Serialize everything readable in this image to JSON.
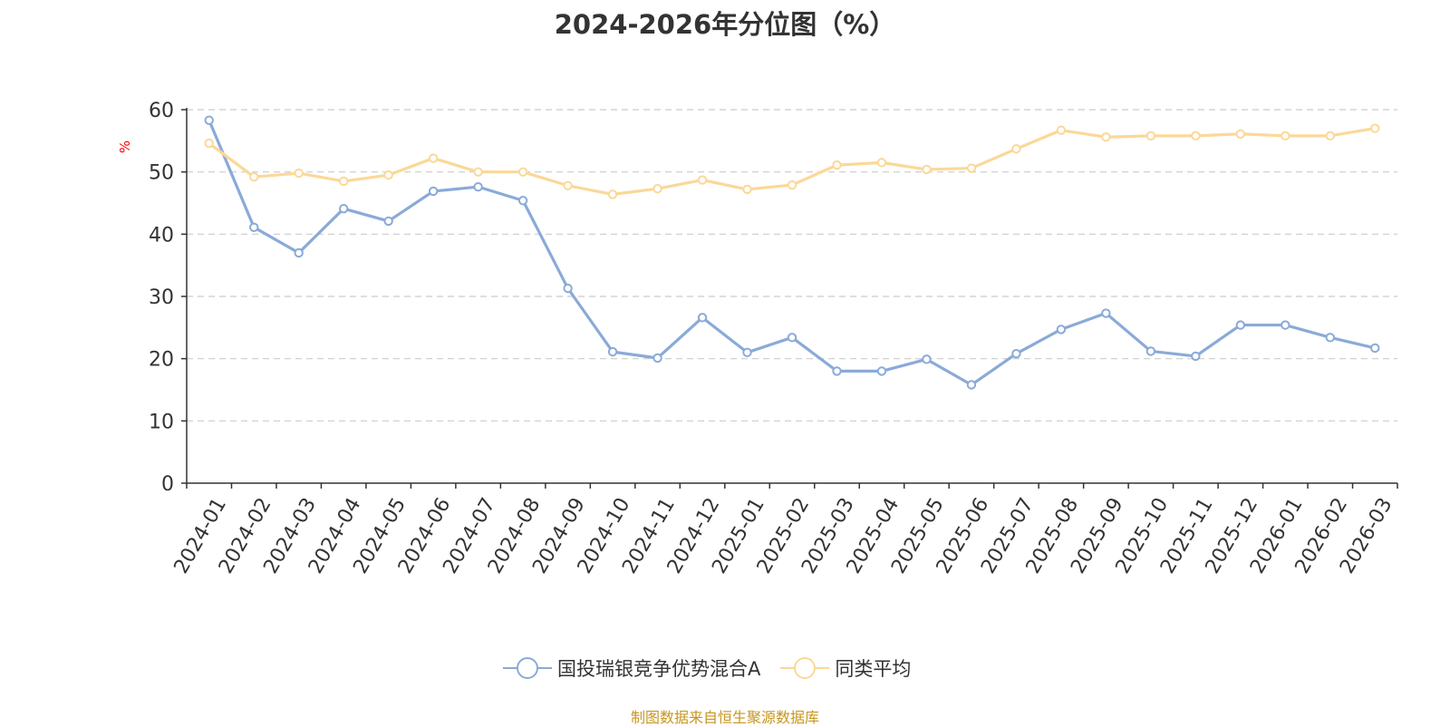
{
  "title": "2024-2026年分位图（%）",
  "source_note": "制图数据来自恒生聚源数据库",
  "colors": {
    "fund": "#8aaad8",
    "peer": "#fbd898",
    "axis": "#333333",
    "grid": "#cccccc",
    "unit": "#ff0000"
  },
  "chart_data": {
    "type": "line",
    "title": "2024-2026年分位图（%）",
    "xlabel": "",
    "ylabel": "%",
    "ylim": [
      0,
      60
    ],
    "yticks": [
      0,
      10,
      20,
      30,
      40,
      50,
      60
    ],
    "grid": true,
    "legend_position": "bottom",
    "categories": [
      "2024-01",
      "2024-02",
      "2024-03",
      "2024-04",
      "2024-05",
      "2024-06",
      "2024-07",
      "2024-08",
      "2024-09",
      "2024-10",
      "2024-11",
      "2024-12",
      "2025-01",
      "2025-02",
      "2025-03",
      "2025-04",
      "2025-05",
      "2025-06",
      "2025-07",
      "2025-08",
      "2025-09",
      "2025-10",
      "2025-11",
      "2025-12",
      "2026-01",
      "2026-02",
      "2026-03"
    ],
    "series": [
      {
        "name": "国投瑞银竞争优势混合A",
        "color_key": "fund",
        "values": [
          58.3,
          41.1,
          37.0,
          44.1,
          42.1,
          46.9,
          47.6,
          45.4,
          31.3,
          21.1,
          20.1,
          26.6,
          21.0,
          23.4,
          18.0,
          18.0,
          19.9,
          15.8,
          20.8,
          24.7,
          27.3,
          21.2,
          20.4,
          25.4,
          25.4,
          23.4,
          21.7
        ]
      },
      {
        "name": "同类平均",
        "color_key": "peer",
        "values": [
          54.6,
          49.2,
          49.8,
          48.5,
          49.5,
          52.2,
          50.0,
          50.0,
          47.8,
          46.4,
          47.3,
          48.7,
          47.2,
          47.9,
          51.1,
          51.5,
          50.4,
          50.6,
          53.7,
          56.7,
          55.6,
          55.8,
          55.8,
          56.1,
          55.8,
          55.8,
          57.0
        ]
      }
    ]
  }
}
